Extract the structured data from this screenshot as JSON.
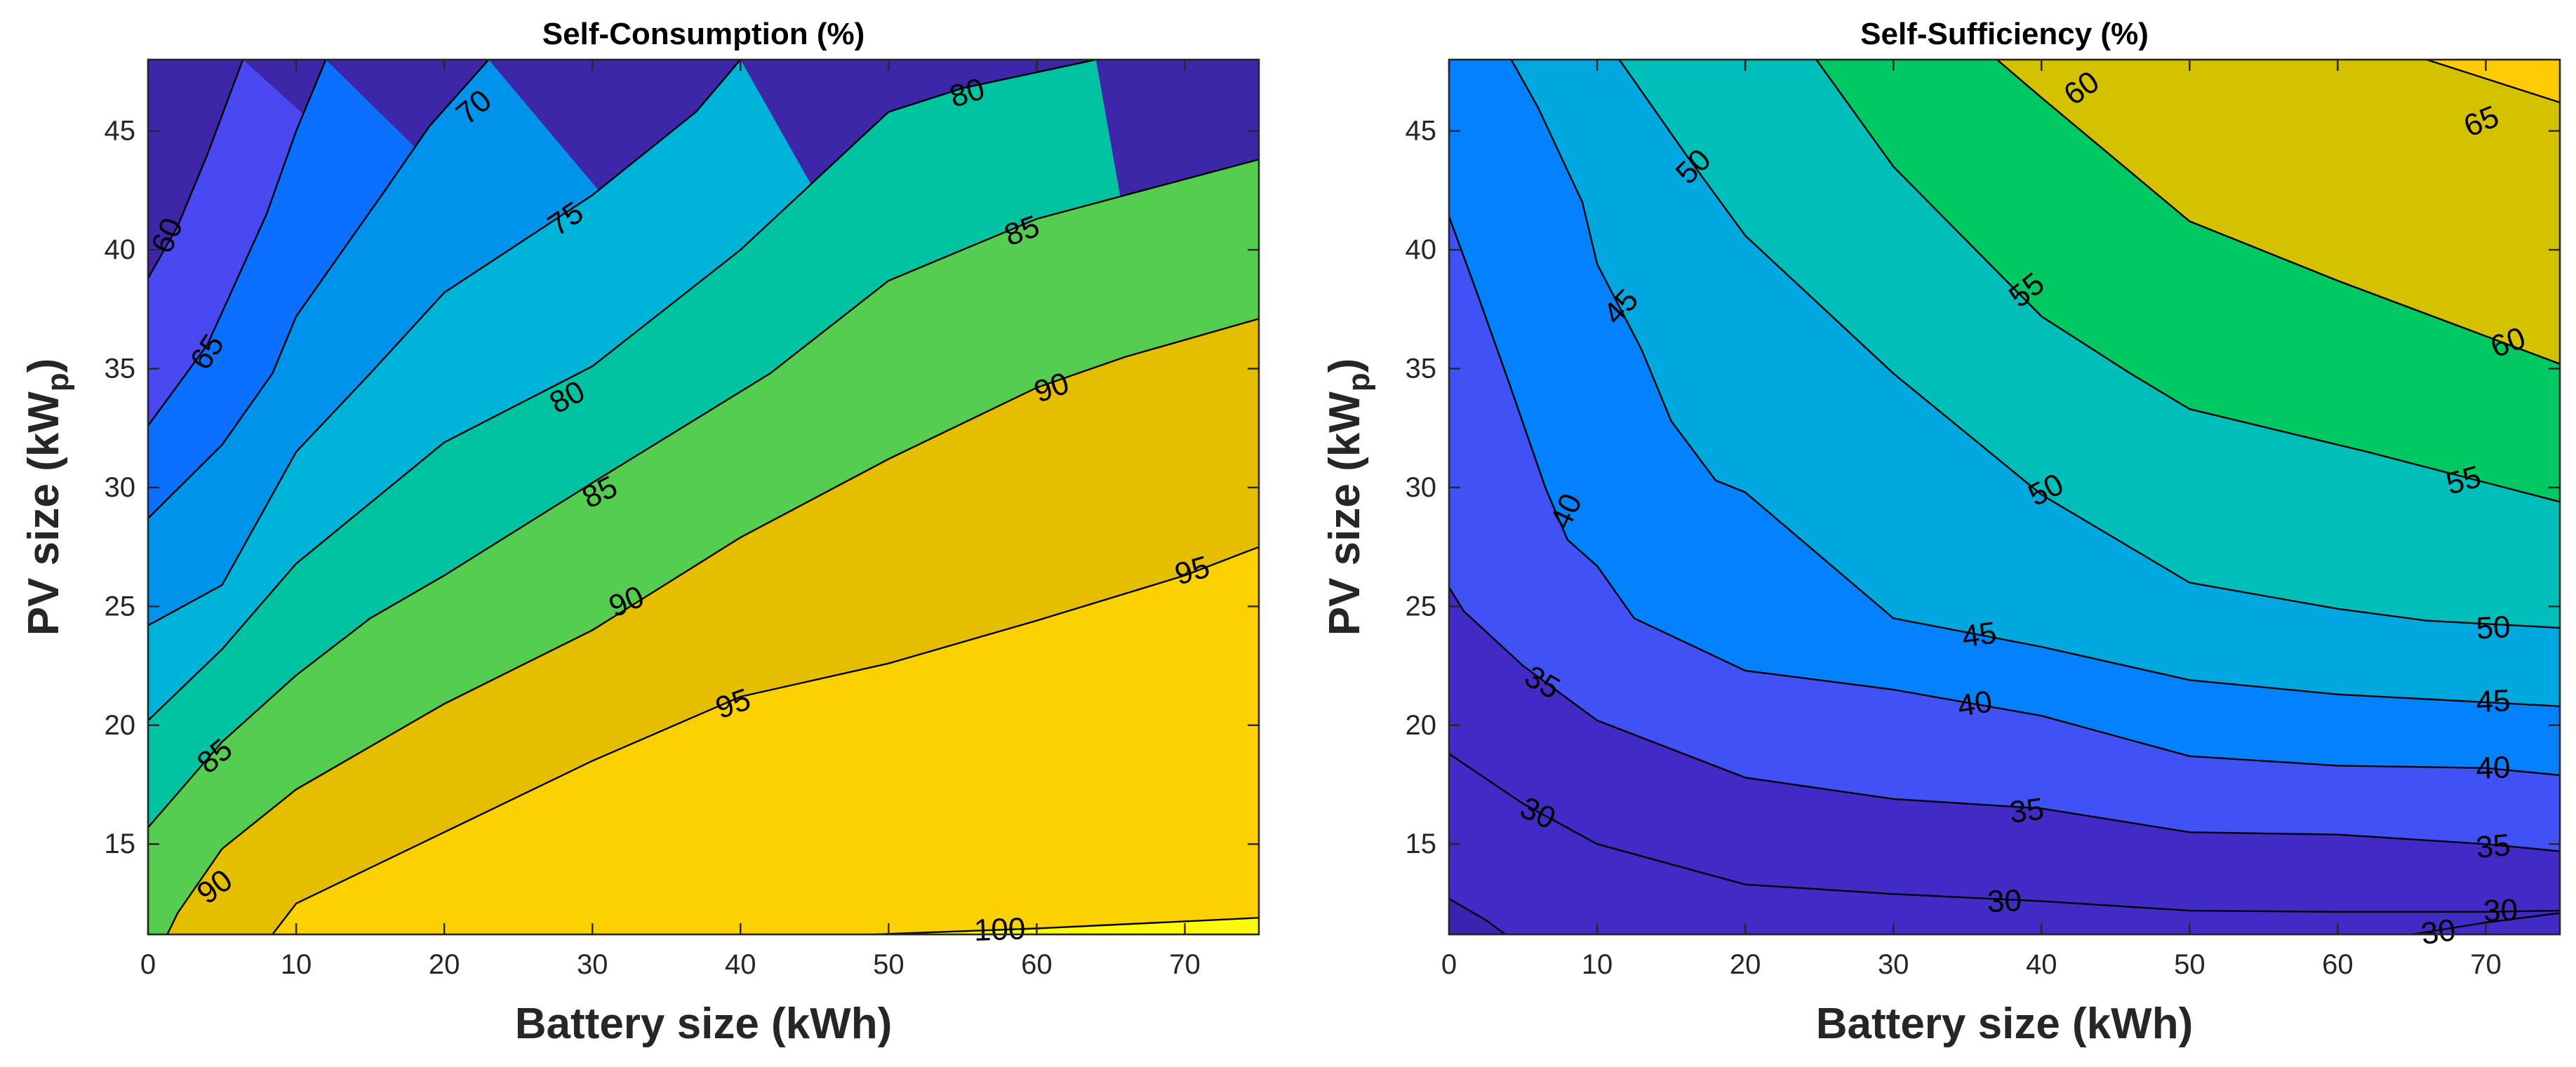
{
  "figure": {
    "chart_data": [
      {
        "type": "contourf",
        "title": "Self-Consumption (%)",
        "xlabel": "Battery size (kWh)",
        "ylabel_main": "PV size (kW",
        "ylabel_sub": "p",
        "ylabel_close": ")",
        "xlim": [
          0,
          75
        ],
        "ylim": [
          11.2,
          48
        ],
        "xticks": [
          0,
          10,
          20,
          30,
          40,
          50,
          60,
          70
        ],
        "yticks": [
          15,
          20,
          25,
          30,
          35,
          40,
          45
        ],
        "levels": [
          55,
          60,
          65,
          70,
          75,
          80,
          85,
          90,
          95,
          100
        ],
        "level_colors": [
          "#3e26a8",
          "#4a48f0",
          "#0b6fff",
          "#0093ec",
          "#00b3d9",
          "#00c3a2",
          "#55cd50",
          "#e6be00",
          "#fcd102",
          "#fafa0a"
        ],
        "contours": [
          {
            "level": 60,
            "points": [
              [
                0,
                38.8
              ],
              [
                2,
                41
              ],
              [
                4,
                44
              ],
              [
                6.4,
                48
              ]
            ],
            "label_at": [
              1.3,
              40.6
            ],
            "label_angle": -67
          },
          {
            "level": 65,
            "points": [
              [
                0,
                32.6
              ],
              [
                4,
                36
              ],
              [
                8,
                41.5
              ],
              [
                10,
                45
              ],
              [
                12,
                48
              ]
            ],
            "label_at": [
              4,
              35.7
            ],
            "label_angle": -57
          },
          {
            "level": 70,
            "points": [
              [
                0,
                28.7
              ],
              [
                5,
                31.8
              ],
              [
                8.4,
                34.8
              ],
              [
                10,
                37.2
              ],
              [
                16,
                42.5
              ],
              [
                19,
                45.2
              ],
              [
                23,
                48
              ]
            ],
            "label_at": [
              22,
              46
            ],
            "label_angle": -40
          },
          {
            "level": 75,
            "points": [
              [
                0,
                24.2
              ],
              [
                5,
                25.9
              ],
              [
                10,
                31.5
              ],
              [
                15,
                34.8
              ],
              [
                20,
                38.2
              ],
              [
                30,
                42.3
              ],
              [
                37,
                45.8
              ],
              [
                40,
                48
              ]
            ],
            "label_at": [
              28.2,
              41.3
            ],
            "label_angle": -34
          },
          {
            "level": 80,
            "points": [
              [
                0,
                20.2
              ],
              [
                5,
                23.2
              ],
              [
                10,
                26.8
              ],
              [
                20,
                31.9
              ],
              [
                30,
                35.1
              ],
              [
                40,
                40
              ],
              [
                50,
                45.8
              ],
              [
                55,
                46.8
              ],
              [
                64,
                48
              ]
            ],
            "label_at": [
              55.3,
              46.6
            ],
            "label_angle": -17,
            "label2_at": [
              28.3,
              33.8
            ],
            "label2_angle": -28
          },
          {
            "level": 85,
            "points": [
              [
                0,
                15.7
              ],
              [
                5,
                19.3
              ],
              [
                10,
                22.1
              ],
              [
                15,
                24.5
              ],
              [
                20,
                26.3
              ],
              [
                30,
                30.2
              ],
              [
                42,
                34.8
              ],
              [
                50,
                38.7
              ],
              [
                60,
                41.3
              ],
              [
                75,
                43.8
              ]
            ],
            "label_at": [
              59,
              40.8
            ],
            "label_angle": -20,
            "label2_at": [
              30.5,
              29.8
            ],
            "label2_angle": -26,
            "label3_at": [
              4.5,
              18.7
            ],
            "label3_angle": -40
          },
          {
            "level": 90,
            "points": [
              [
                1.3,
                11.2
              ],
              [
                2,
                12.1
              ],
              [
                5,
                14.8
              ],
              [
                10,
                17.3
              ],
              [
                20,
                20.9
              ],
              [
                30,
                24
              ],
              [
                40,
                27.9
              ],
              [
                50,
                31.2
              ],
              [
                60,
                34.2
              ],
              [
                66,
                35.5
              ],
              [
                75,
                37.1
              ]
            ],
            "label_at": [
              61,
              34.2
            ],
            "label_angle": -19,
            "label2_at": [
              32.3,
              25.2
            ],
            "label2_angle": -23,
            "label3_at": [
              4.5,
              13.2
            ],
            "label3_angle": -37
          },
          {
            "level": 95,
            "points": [
              [
                8.4,
                11.2
              ],
              [
                10,
                12.5
              ],
              [
                20,
                15.5
              ],
              [
                30,
                18.5
              ],
              [
                40,
                21.2
              ],
              [
                50,
                22.6
              ],
              [
                60,
                24.4
              ],
              [
                70,
                26.3
              ],
              [
                75,
                27.5
              ]
            ],
            "label_at": [
              70.5,
              26.5
            ],
            "label_angle": -16,
            "label2_at": [
              39.5,
              20.9
            ],
            "label2_angle": -19
          },
          {
            "level": 100,
            "points": [
              [
                49,
                11.2
              ],
              [
                60,
                11.45
              ],
              [
                75,
                11.9
              ]
            ],
            "label_at": [
              57.5,
              11.4
            ],
            "label_angle": -2
          }
        ]
      },
      {
        "type": "contourf",
        "title": "Self-Sufficiency (%)",
        "xlabel": "Battery size (kWh)",
        "ylabel_main": "PV size (kW",
        "ylabel_sub": "p",
        "ylabel_close": ")",
        "xlim": [
          0,
          75
        ],
        "ylim": [
          11.2,
          48
        ],
        "xticks": [
          0,
          10,
          20,
          30,
          40,
          50,
          60,
          70
        ],
        "yticks": [
          15,
          20,
          25,
          30,
          35,
          40,
          45
        ],
        "levels": [
          25,
          30,
          35,
          40,
          45,
          50,
          55,
          60,
          65,
          70
        ],
        "level_colors": [
          "#3b22b0",
          "#412ac5",
          "#4052f5",
          "#0381ff",
          "#01a8e0",
          "#00bfbb",
          "#00c964",
          "#d4c200",
          "#ffcb05",
          "#f8f80e"
        ],
        "contours": [
          {
            "level": 30,
            "points": [
              [
                0,
                12.7
              ],
              [
                2.5,
                11.8
              ],
              [
                3.8,
                11.2
              ]
            ],
            "label_at": null,
            "label_angle": 0,
            "extra": [
              [
                65,
                11.2
              ],
              [
                70,
                11.7
              ],
              [
                75,
                12.1
              ]
            ],
            "extra_label_at": [
              66.8,
              11.3
            ],
            "extra_label_angle": -8
          },
          {
            "level": 30,
            "points": [
              [
                0,
                18.8
              ],
              [
                5,
                16.7
              ],
              [
                10,
                15
              ],
              [
                20,
                13.3
              ],
              [
                30,
                12.9
              ],
              [
                40,
                12.6
              ],
              [
                50,
                12.2
              ],
              [
                60,
                12.15
              ],
              [
                70,
                12.15
              ],
              [
                75,
                12.2
              ]
            ],
            "label_at": [
              6,
              16.3
            ],
            "label_angle": 25,
            "label2_at": [
              37.5,
              12.6
            ],
            "label2_angle": -2,
            "label3_at": [
              71,
              12.2
            ],
            "label3_angle": -2
          },
          {
            "level": 35,
            "points": [
              [
                0,
                25.8
              ],
              [
                1,
                24.8
              ],
              [
                5,
                22.5
              ],
              [
                10,
                20.2
              ],
              [
                20,
                17.8
              ],
              [
                30,
                16.9
              ],
              [
                40,
                16.5
              ],
              [
                50,
                15.5
              ],
              [
                60,
                15.4
              ],
              [
                70,
                15
              ],
              [
                75,
                14.7
              ]
            ],
            "label_at": [
              6.3,
              21.8
            ],
            "label_angle": 30,
            "label2_at": [
              39,
              16.4
            ],
            "label2_angle": -7,
            "label3_at": [
              70.5,
              14.9
            ],
            "label3_angle": -5
          },
          {
            "level": 40,
            "points": [
              [
                0,
                41.4
              ],
              [
                2,
                38
              ],
              [
                4,
                34.5
              ],
              [
                6.5,
                30
              ],
              [
                8,
                27.8
              ],
              [
                10,
                26.7
              ],
              [
                12.5,
                24.5
              ],
              [
                20,
                22.3
              ],
              [
                30,
                21.5
              ],
              [
                40,
                20.4
              ],
              [
                50,
                18.7
              ],
              [
                60,
                18.3
              ],
              [
                70,
                18.2
              ],
              [
                75,
                17.9
              ]
            ],
            "label_at": [
              7.9,
              29
            ],
            "label_angle": -65,
            "label2_at": [
              35.5,
              20.9
            ],
            "label2_angle": -9,
            "label3_at": [
              70.5,
              18.2
            ],
            "label3_angle": -2
          },
          {
            "level": 45,
            "points": [
              [
                4.2,
                48
              ],
              [
                6,
                46
              ],
              [
                9,
                42
              ],
              [
                10,
                39.4
              ],
              [
                13,
                35.8
              ],
              [
                15,
                32.8
              ],
              [
                18,
                30.3
              ],
              [
                20,
                29.8
              ],
              [
                30,
                24.5
              ],
              [
                40,
                23.3
              ],
              [
                50,
                21.9
              ],
              [
                60,
                21.3
              ],
              [
                75,
                20.8
              ]
            ],
            "label_at": [
              11.6,
              37.6
            ],
            "label_angle": -47,
            "label2_at": [
              35.8,
              23.8
            ],
            "label2_angle": -8,
            "label3_at": [
              70.5,
              21
            ],
            "label3_angle": -3
          },
          {
            "level": 50,
            "points": [
              [
                11.5,
                48
              ],
              [
                16,
                44
              ],
              [
                20,
                40.6
              ],
              [
                30,
                34.8
              ],
              [
                40,
                29.7
              ],
              [
                50,
                26
              ],
              [
                60,
                24.9
              ],
              [
                66,
                24.4
              ],
              [
                75,
                24.1
              ]
            ],
            "label_at": [
              16.5,
              43.5
            ],
            "label_angle": -45,
            "label2_at": [
              40.3,
              29.9
            ],
            "label2_angle": -27,
            "label3_at": [
              70.5,
              24.1
            ],
            "label3_angle": -3
          },
          {
            "level": 55,
            "points": [
              [
                24.8,
                48
              ],
              [
                30,
                43.5
              ],
              [
                40,
                37.2
              ],
              [
                46,
                34.8
              ],
              [
                50,
                33.3
              ],
              [
                62,
                31.5
              ],
              [
                75,
                29.4
              ]
            ],
            "label_at": [
              39,
              38.3
            ],
            "label_angle": -38,
            "label2_at": [
              68.5,
              30.3
            ],
            "label2_angle": -15
          },
          {
            "level": 60,
            "points": [
              [
                37,
                48
              ],
              [
                40,
                46.4
              ],
              [
                50,
                41.2
              ],
              [
                60,
                38.7
              ],
              [
                75,
                35.2
              ]
            ],
            "label_at": [
              42.7,
              46.8
            ],
            "label_angle": -35,
            "label2_at": [
              71.5,
              36.1
            ],
            "label2_angle": -20
          },
          {
            "level": 65,
            "points": [
              [
                66,
                48
              ],
              [
                75,
                46.2
              ]
            ],
            "label_at": [
              69.7,
              45.4
            ],
            "label_angle": -22
          }
        ]
      }
    ]
  }
}
